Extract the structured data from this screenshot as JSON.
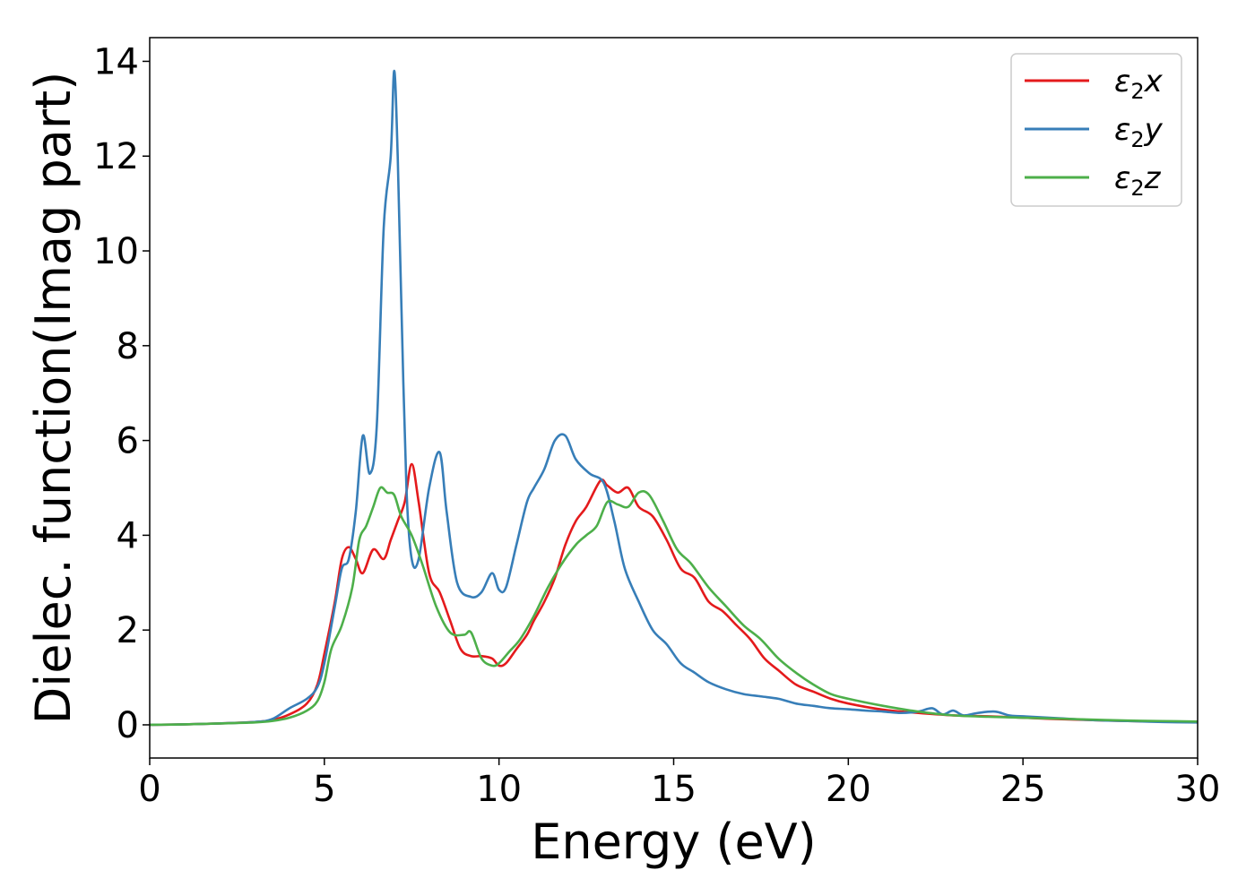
{
  "chart_data": {
    "type": "line",
    "xlabel": "Energy (eV)",
    "ylabel": "Dielec. function(Imag part)",
    "xlim": [
      0,
      30
    ],
    "ylim": [
      -0.7,
      14.5
    ],
    "xticks": [
      "0",
      "5",
      "10",
      "15",
      "20",
      "25",
      "30"
    ],
    "yticks": [
      "0",
      "2",
      "4",
      "6",
      "8",
      "10",
      "12",
      "14"
    ],
    "grid": false,
    "legend_position": "top-right",
    "series": [
      {
        "name": "ε2x",
        "legend_base": "ε",
        "legend_sub": "2",
        "legend_suffix": "x",
        "color": "#e41a1c",
        "x": [
          0,
          1,
          2,
          3,
          3.5,
          4,
          4.5,
          4.8,
          5,
          5.3,
          5.5,
          5.7,
          5.9,
          6.1,
          6.4,
          6.7,
          6.9,
          7.1,
          7.3,
          7.5,
          7.7,
          8,
          8.3,
          8.6,
          8.9,
          9.2,
          9.5,
          9.8,
          10,
          10.2,
          10.5,
          10.8,
          11,
          11.3,
          11.6,
          11.9,
          12.2,
          12.5,
          12.9,
          13.1,
          13.4,
          13.7,
          14,
          14.4,
          14.8,
          15.2,
          15.6,
          16,
          16.4,
          16.8,
          17.2,
          17.6,
          18,
          18.5,
          19,
          19.5,
          20,
          21,
          22,
          23,
          24,
          25,
          26,
          27,
          28,
          29,
          30
        ],
        "y": [
          0,
          0.01,
          0.03,
          0.06,
          0.1,
          0.22,
          0.45,
          0.85,
          1.5,
          2.6,
          3.5,
          3.75,
          3.5,
          3.2,
          3.7,
          3.5,
          3.9,
          4.3,
          4.7,
          5.5,
          4.7,
          3.2,
          2.8,
          2.2,
          1.6,
          1.45,
          1.45,
          1.4,
          1.25,
          1.3,
          1.6,
          1.9,
          2.2,
          2.6,
          3.1,
          3.8,
          4.3,
          4.6,
          5.15,
          5.05,
          4.9,
          5.0,
          4.6,
          4.4,
          3.9,
          3.3,
          3.1,
          2.6,
          2.4,
          2.1,
          1.8,
          1.4,
          1.15,
          0.85,
          0.7,
          0.55,
          0.45,
          0.32,
          0.25,
          0.2,
          0.18,
          0.15,
          0.12,
          0.1,
          0.08,
          0.07,
          0.06
        ]
      },
      {
        "name": "ε2y",
        "legend_base": "ε",
        "legend_sub": "2",
        "legend_suffix": "y",
        "color": "#377eb8",
        "x": [
          0,
          1,
          2,
          3,
          3.5,
          4,
          4.5,
          4.8,
          5,
          5.3,
          5.5,
          5.7,
          5.9,
          6.1,
          6.3,
          6.5,
          6.7,
          6.9,
          7.0,
          7.1,
          7.2,
          7.35,
          7.5,
          7.7,
          8,
          8.3,
          8.5,
          8.8,
          9.2,
          9.5,
          9.8,
          10,
          10.2,
          10.5,
          10.8,
          11,
          11.3,
          11.6,
          11.9,
          12.2,
          12.6,
          13.0,
          13.3,
          13.6,
          14,
          14.4,
          14.8,
          15.2,
          15.6,
          16,
          16.5,
          17,
          17.5,
          18,
          18.5,
          19,
          19.5,
          20,
          20.5,
          21,
          21.5,
          22,
          22.4,
          22.7,
          23,
          23.3,
          23.7,
          24.2,
          24.6,
          25,
          26,
          27,
          28,
          29,
          30
        ],
        "y": [
          0,
          0.01,
          0.03,
          0.06,
          0.12,
          0.35,
          0.55,
          0.8,
          1.3,
          2.5,
          3.3,
          3.5,
          4.5,
          6.1,
          5.3,
          6.3,
          10.5,
          12.0,
          13.8,
          12.0,
          9.0,
          5.0,
          3.5,
          3.5,
          5.0,
          5.75,
          4.5,
          3.0,
          2.7,
          2.8,
          3.2,
          2.85,
          2.9,
          3.8,
          4.7,
          5.0,
          5.4,
          6.0,
          6.1,
          5.6,
          5.3,
          5.1,
          4.3,
          3.3,
          2.6,
          2.0,
          1.7,
          1.3,
          1.1,
          0.9,
          0.75,
          0.65,
          0.6,
          0.55,
          0.45,
          0.4,
          0.35,
          0.33,
          0.3,
          0.28,
          0.25,
          0.28,
          0.35,
          0.22,
          0.3,
          0.2,
          0.25,
          0.28,
          0.2,
          0.18,
          0.14,
          0.1,
          0.08,
          0.06,
          0.05
        ]
      },
      {
        "name": "ε2z",
        "legend_base": "ε",
        "legend_sub": "2",
        "legend_suffix": "z",
        "color": "#4daf4a",
        "x": [
          0,
          1,
          2,
          3,
          3.5,
          4,
          4.5,
          4.8,
          5,
          5.2,
          5.5,
          5.8,
          6.0,
          6.2,
          6.4,
          6.6,
          6.8,
          7.0,
          7.2,
          7.5,
          7.8,
          8.2,
          8.6,
          9.0,
          9.2,
          9.5,
          9.8,
          10,
          10.3,
          10.6,
          11,
          11.4,
          11.8,
          12.2,
          12.5,
          12.8,
          13.1,
          13.4,
          13.7,
          14,
          14.3,
          14.7,
          15.1,
          15.5,
          16,
          16.5,
          17,
          17.5,
          18,
          18.5,
          19,
          19.5,
          20,
          21,
          22,
          23,
          24,
          25,
          26,
          27,
          28,
          29,
          30
        ],
        "y": [
          0,
          0.01,
          0.03,
          0.05,
          0.08,
          0.15,
          0.3,
          0.5,
          0.9,
          1.6,
          2.1,
          2.9,
          3.9,
          4.2,
          4.6,
          5.0,
          4.9,
          4.85,
          4.4,
          4.0,
          3.4,
          2.5,
          1.95,
          1.9,
          1.95,
          1.4,
          1.25,
          1.3,
          1.55,
          1.8,
          2.3,
          2.9,
          3.4,
          3.8,
          4.0,
          4.2,
          4.7,
          4.65,
          4.6,
          4.9,
          4.85,
          4.3,
          3.7,
          3.4,
          2.9,
          2.5,
          2.1,
          1.8,
          1.4,
          1.1,
          0.85,
          0.65,
          0.55,
          0.4,
          0.28,
          0.2,
          0.17,
          0.15,
          0.13,
          0.11,
          0.09,
          0.08,
          0.07
        ]
      }
    ]
  }
}
